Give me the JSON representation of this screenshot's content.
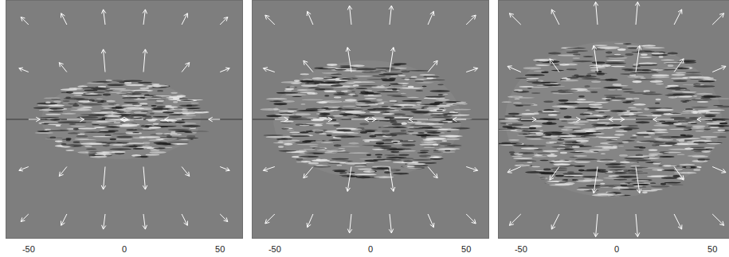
{
  "chart_data": [
    {
      "type": "vector_field",
      "xlim": [
        -62,
        62
      ],
      "ylim": [
        -63,
        63
      ],
      "xticks": [
        -50,
        0,
        50
      ],
      "tick_labels": "x",
      "color": "#ffffff",
      "x": [
        -50,
        -30,
        -10,
        10,
        30,
        50,
        -50,
        -30,
        -10,
        10,
        30,
        50,
        -50,
        -30,
        -10,
        10,
        30,
        50,
        -50,
        -30,
        -10,
        10,
        30,
        50,
        -50,
        -30,
        -10,
        10,
        30,
        50
      ],
      "y": [
        50,
        50,
        50,
        50,
        50,
        50,
        25,
        25,
        25,
        25,
        25,
        25,
        0,
        0,
        0,
        0,
        0,
        0,
        -25,
        -25,
        -25,
        -25,
        -25,
        -25,
        -50,
        -50,
        -50,
        -50,
        -50,
        -50
      ],
      "u": [
        -4,
        -3,
        -1,
        1,
        3,
        4,
        -5,
        -4,
        -1,
        1,
        4,
        5,
        6,
        9,
        12,
        -12,
        -9,
        -6,
        -5,
        -4,
        -1,
        1,
        4,
        5,
        -4,
        -3,
        -1,
        1,
        3,
        4
      ],
      "v": [
        4,
        6,
        8,
        8,
        6,
        4,
        2,
        5,
        12,
        12,
        5,
        2,
        0,
        0,
        0,
        0,
        0,
        0,
        -2,
        -5,
        -12,
        -12,
        -5,
        -2,
        -4,
        -6,
        -8,
        -8,
        -6,
        -4
      ]
    },
    {
      "type": "vector_field",
      "xlim": [
        -62,
        62
      ],
      "ylim": [
        -63,
        63
      ],
      "xticks": [
        -50,
        0,
        50
      ],
      "tick_labels": "x",
      "color": "#ffffff",
      "x": [
        -50,
        -30,
        -10,
        10,
        30,
        50,
        -50,
        -30,
        -10,
        10,
        30,
        50,
        -50,
        -30,
        -10,
        10,
        30,
        50,
        -50,
        -30,
        -10,
        10,
        30,
        50,
        -50,
        -30,
        -10,
        10,
        30,
        50
      ],
      "y": [
        50,
        50,
        50,
        50,
        50,
        50,
        25,
        25,
        25,
        25,
        25,
        25,
        0,
        0,
        0,
        0,
        0,
        0,
        -25,
        -25,
        -25,
        -25,
        -25,
        -25,
        -50,
        -50,
        -50,
        -50,
        -50,
        -50
      ],
      "u": [
        -5,
        -3,
        -1,
        1,
        3,
        5,
        -6,
        -5,
        -2,
        2,
        5,
        6,
        7,
        10,
        13,
        -13,
        -10,
        -7,
        -6,
        -5,
        -2,
        2,
        5,
        6,
        -5,
        -3,
        -1,
        1,
        3,
        5
      ],
      "v": [
        5,
        7,
        10,
        10,
        7,
        5,
        2,
        6,
        13,
        13,
        6,
        2,
        0,
        0,
        0,
        0,
        0,
        0,
        -2,
        -6,
        -13,
        -13,
        -6,
        -2,
        -5,
        -7,
        -10,
        -10,
        -7,
        -5
      ]
    },
    {
      "type": "vector_field",
      "xlim": [
        -62,
        62
      ],
      "ylim": [
        -63,
        63
      ],
      "xticks": [
        -50,
        0,
        50
      ],
      "tick_labels": "x",
      "color": "#ffffff",
      "x": [
        -50,
        -30,
        -10,
        10,
        30,
        50,
        -50,
        -30,
        -10,
        10,
        30,
        50,
        -50,
        -30,
        -10,
        10,
        30,
        50,
        -50,
        -30,
        -10,
        10,
        30,
        50,
        -50,
        -30,
        -10,
        10,
        30,
        50
      ],
      "y": [
        50,
        50,
        50,
        50,
        50,
        50,
        25,
        25,
        25,
        25,
        25,
        25,
        0,
        0,
        0,
        0,
        0,
        0,
        -25,
        -25,
        -25,
        -25,
        -25,
        -25,
        -50,
        -50,
        -50,
        -50,
        -50,
        -50
      ],
      "u": [
        -6,
        -4,
        -1,
        1,
        4,
        6,
        -7,
        -5,
        -2,
        2,
        5,
        7,
        8,
        11,
        14,
        -14,
        -11,
        -8,
        -7,
        -5,
        -2,
        2,
        5,
        7,
        -6,
        -4,
        -1,
        1,
        4,
        6
      ],
      "v": [
        6,
        8,
        12,
        12,
        8,
        6,
        3,
        7,
        14,
        14,
        7,
        3,
        0,
        0,
        0,
        0,
        0,
        0,
        -3,
        -7,
        -14,
        -14,
        -7,
        -3,
        -6,
        -8,
        -12,
        -12,
        -8,
        -6
      ]
    }
  ]
}
